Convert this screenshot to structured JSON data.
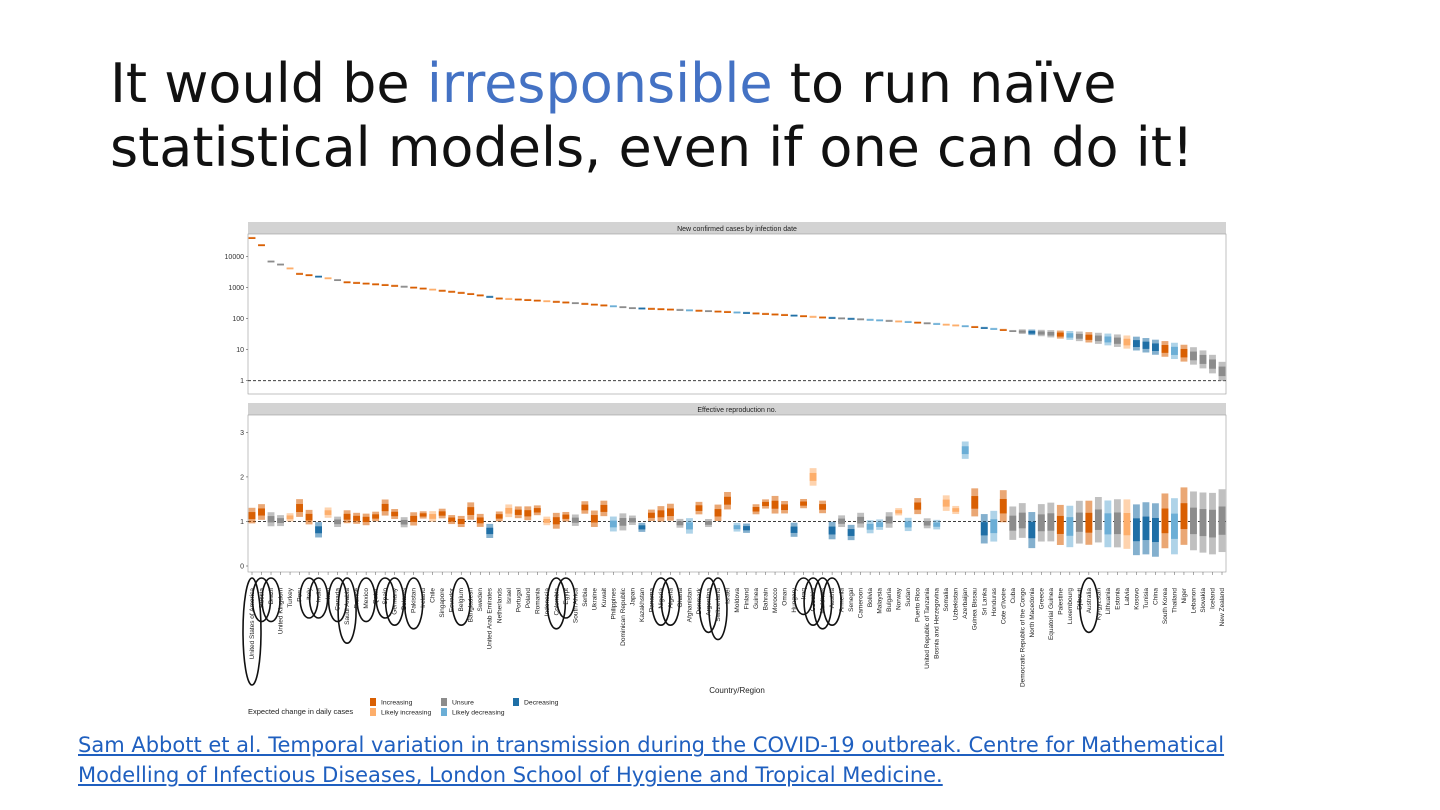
{
  "slide": {
    "title_before": "It would be ",
    "title_accent": "irresponsible",
    "title_after": " to run naïve statistical models, even if one can do it!",
    "accent_color": "#4472c4"
  },
  "citation": {
    "text": "Sam Abbott et al. Temporal variation in transmission during the COVID-19 outbreak. Centre for Mathematical Modelling of Infectious Diseases, London School of Hygiene and Tropical Medicine."
  },
  "chart_data": {
    "type": "range-dot (interval bars)",
    "xlabel": "Country/Region",
    "legend": {
      "title": "Expected change in daily cases",
      "placement": "bottom-left",
      "categories": [
        "Increasing",
        "Likely increasing",
        "Unsure",
        "Likely decreasing",
        "Decreasing"
      ],
      "colors": {
        "Increasing": "#d95f02",
        "Likely increasing": "#fdae6b",
        "Unsure": "#8c8c8c",
        "Likely decreasing": "#6baed6",
        "Decreasing": "#1f6fa6"
      }
    },
    "countries": [
      "United States of America",
      "Russia",
      "Brazil",
      "United Kingdom",
      "Turkey",
      "Peru",
      "Italy",
      "India",
      "Iran",
      "Canada",
      "Saudi Arabia",
      "France",
      "Mexico",
      "Qatar",
      "Spain",
      "Germany",
      "Belarus",
      "Pakistan",
      "Ireland",
      "Chile",
      "Singapore",
      "Ecuador",
      "Belgium",
      "Bangladesh",
      "Sweden",
      "United Arab Emirates",
      "Netherlands",
      "Israel",
      "Portugal",
      "Poland",
      "Romania",
      "Indonesia",
      "Colombia",
      "Egypt",
      "South Africa",
      "Serbia",
      "Ukraine",
      "Kuwait",
      "Philippines",
      "Dominican Republic",
      "Japan",
      "Kazakhstan",
      "Panama",
      "Nigeria",
      "Algeria",
      "Ghana",
      "Afghanistan",
      "Denmark",
      "Argentina",
      "Switzerland",
      "Israel",
      "Moldova",
      "Finland",
      "Guinea",
      "Bahrain",
      "Morocco",
      "Oman",
      "Hungary",
      "Iraq",
      "Czechia",
      "Maldives",
      "Austria",
      "Armenia",
      "Senegal",
      "Cameroon",
      "Bolivia",
      "Malaysia",
      "Bulgaria",
      "Norway",
      "Sudan",
      "Puerto Rico",
      "United Republic of Tanzania",
      "Bosnia and Herzegovina",
      "Somalia",
      "Uzbekistan",
      "Azerbaijan",
      "Guinea Bissau",
      "Sri Lanka",
      "Honduras",
      "Cote d'Ivoire",
      "Cuba",
      "Democratic Republic of the Congo",
      "North Macedonia",
      "Greece",
      "Equatorial Guinea",
      "Palestine",
      "Luxembourg",
      "Djibouti",
      "Australia",
      "Kyrgyzstan",
      "Lithuania",
      "Estonia",
      "Latvia",
      "Kosovo",
      "Tunisia",
      "China",
      "South Korea",
      "Thailand",
      "Niger",
      "Lebanon",
      "Slovakia",
      "Iceland",
      "New Zealand"
    ],
    "highlighted_countries": [
      "United States of America",
      "Russia",
      "Brazil",
      "Italy",
      "India",
      "Canada",
      "Saudi Arabia",
      "Mexico",
      "Spain",
      "Germany",
      "Pakistan",
      "Belgium",
      "Colombia",
      "Egypt",
      "Nigeria",
      "Algeria",
      "Argentina",
      "Switzerland",
      "Iraq",
      "Czechia",
      "Maldives",
      "Austria",
      "Australia"
    ],
    "panels": [
      {
        "title": "New confirmed cases by infection date",
        "yscale": "log10",
        "yticks": [
          "1",
          "10",
          "100",
          "1000",
          "10000"
        ],
        "reference_line": 1,
        "value_profile": [
          {
            "rank": 0,
            "value": 40000
          },
          {
            "rank": 2,
            "value": 7000
          },
          {
            "rank": 5,
            "value": 2800
          },
          {
            "rank": 10,
            "value": 1500
          },
          {
            "rank": 20,
            "value": 800
          },
          {
            "rank": 26,
            "value": 450
          },
          {
            "rank": 40,
            "value": 220
          },
          {
            "rank": 60,
            "value": 110
          },
          {
            "rank": 80,
            "value": 40
          },
          {
            "rank": 95,
            "value": 12
          },
          {
            "rank": 102,
            "value": 2
          }
        ]
      },
      {
        "title": "Effective reproduction no.",
        "yticks": [
          "0",
          "1",
          "2",
          "3"
        ],
        "ylim": [
          0,
          3.3
        ],
        "reference_line": 1,
        "value_profile": [
          {
            "rank": 0,
            "value": 1.2
          },
          {
            "rank": 15,
            "value": 1.15
          },
          {
            "rank": 30,
            "value": 1.1
          },
          {
            "rank": 45,
            "value": 1.3
          },
          {
            "rank": 60,
            "value": 1.3
          },
          {
            "rank": 75,
            "value": 1.4
          },
          {
            "rank": 90,
            "value": 0.9
          },
          {
            "rank": 102,
            "value": 1.0
          }
        ],
        "notable_values": {
          "Azerbaijan": 2.6,
          "Czechia": 2.0
        }
      }
    ]
  }
}
